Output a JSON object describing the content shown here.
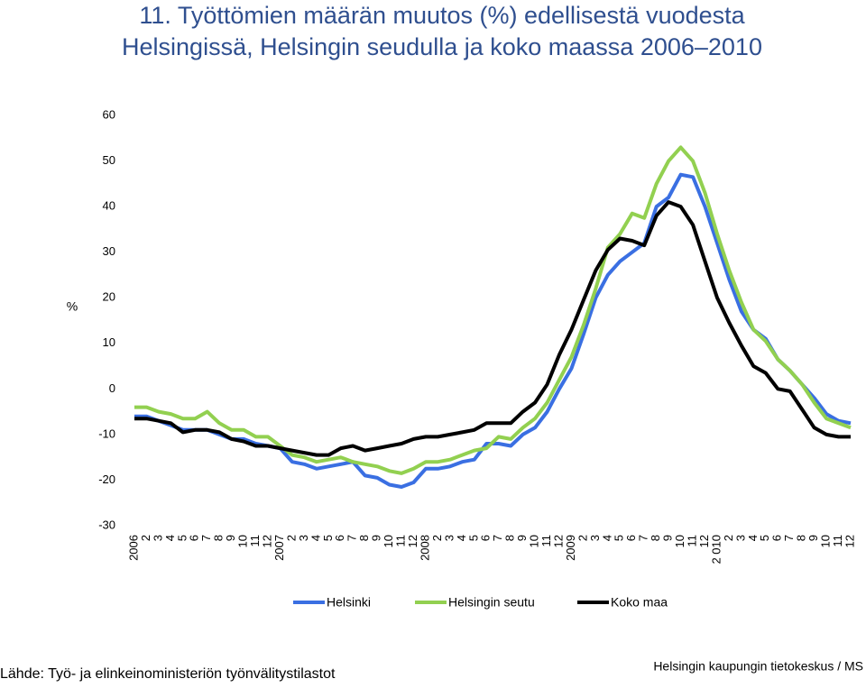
{
  "chart_data": {
    "type": "line",
    "title": "11. Työttömien määrän muutos (%) edellisestä vuodesta Helsingissä, Helsingin seudulla ja koko maassa 2006–2010",
    "y_label": "%",
    "categories": [
      "2006",
      "2",
      "3",
      "4",
      "5",
      "6",
      "7",
      "8",
      "9",
      "10",
      "11",
      "12",
      "2007",
      "2",
      "3",
      "4",
      "5",
      "6",
      "7",
      "8",
      "9",
      "10",
      "11",
      "12",
      "2008",
      "2",
      "3",
      "4",
      "5",
      "6",
      "7",
      "8",
      "9",
      "10",
      "11",
      "12",
      "2009",
      "2",
      "3",
      "4",
      "5",
      "6",
      "7",
      "8",
      "9",
      "10",
      "11",
      "12",
      "2 010",
      "2",
      "3",
      "4",
      "5",
      "6",
      "7",
      "8",
      "9",
      "10",
      "11",
      "12"
    ],
    "series": [
      {
        "name": "Helsinki",
        "color": "#3a6fe2",
        "values": [
          -6,
          -6,
          -7,
          -8,
          -9,
          -9,
          -9,
          -10,
          -11,
          -11,
          -12,
          -12.5,
          -13,
          -16,
          -16.5,
          -17.5,
          -17,
          -16.5,
          -16,
          -19,
          -19.5,
          -21,
          -21.5,
          -20.5,
          -17.5,
          -17.5,
          -17,
          -16,
          -15.5,
          -12,
          -12,
          -12.5,
          -10,
          -8.5,
          -5,
          0,
          4.5,
          12,
          20,
          25,
          28,
          30,
          32,
          40,
          42,
          47,
          46.5,
          40,
          32,
          24,
          17,
          13,
          11,
          6.5,
          4,
          1,
          -2,
          -5.5,
          -7,
          -7.5
        ]
      },
      {
        "name": "Helsingin seutu",
        "color": "#92d050",
        "values": [
          -4,
          -4,
          -5,
          -5.5,
          -6.5,
          -6.5,
          -5,
          -7.5,
          -9,
          -9,
          -10.5,
          -10.5,
          -12.5,
          -14.5,
          -15,
          -16,
          -15.5,
          -15,
          -16,
          -16.5,
          -17,
          -18,
          -18.5,
          -17.5,
          -16,
          -16,
          -15.5,
          -14.5,
          -13.5,
          -13,
          -10.5,
          -11,
          -8.5,
          -6.5,
          -3,
          2,
          7,
          14,
          22,
          31,
          34,
          38.5,
          37.5,
          45,
          50,
          53,
          50,
          43,
          34,
          26,
          19,
          13,
          10.5,
          6.5,
          4,
          1,
          -3,
          -6.5,
          -7.5,
          -8.5
        ]
      },
      {
        "name": "Koko maa",
        "color": "#000000",
        "values": [
          -6.5,
          -6.5,
          -7,
          -7.5,
          -9.5,
          -9,
          -9,
          -9.5,
          -11,
          -11.5,
          -12.5,
          -12.5,
          -13,
          -13.5,
          -14,
          -14.5,
          -14.5,
          -13,
          -12.5,
          -13.5,
          -13,
          -12.5,
          -12,
          -11,
          -10.5,
          -10.5,
          -10,
          -9.5,
          -9,
          -7.5,
          -7.5,
          -7.5,
          -5,
          -3,
          1,
          7.5,
          13,
          19.5,
          26,
          30.5,
          33,
          32.5,
          31.5,
          38,
          41,
          40,
          36,
          28,
          20,
          14.5,
          9.5,
          5,
          3.5,
          0,
          -0.5,
          -4.5,
          -8.5,
          -10,
          -10.5,
          -10.5
        ]
      }
    ],
    "ylim": [
      -30,
      60
    ],
    "yticks": [
      -30,
      -20,
      -10,
      0,
      10,
      20,
      30,
      40,
      50,
      60
    ],
    "grid": false,
    "legend": "bottom",
    "source": "Lähde: Työ- ja elinkeinoministeriön työnvälitystilastot",
    "credit": "Helsingin kaupungin tietokeskus / MS"
  }
}
